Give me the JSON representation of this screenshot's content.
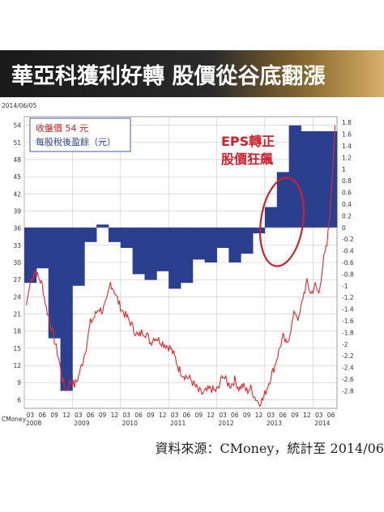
{
  "title": "華亞科獲利好轉 股價從谷底翻漲",
  "source": "資料來源：CMoney，統計至 2014/06",
  "chart_data": {
    "type": "bar+line",
    "date_label": "2014/06/05",
    "left_axis": {
      "ticks": [
        6,
        9,
        12,
        15,
        18,
        21,
        24,
        27,
        30,
        33,
        36,
        39,
        42,
        45,
        48,
        51,
        54
      ],
      "ylim": [
        4.5,
        55.5
      ]
    },
    "right_axis": {
      "ticks": [
        1.8,
        1.6,
        1.4,
        1.2,
        1,
        0.8,
        0.6,
        0.4,
        0.2,
        0,
        -0.2,
        -0.4,
        -0.6,
        -0.8,
        -1,
        -1.2,
        -1.4,
        -1.6,
        -1.8,
        -2,
        -2.2,
        -2.4,
        -2.6,
        -2.8
      ],
      "ylim": [
        -3.1,
        1.9
      ]
    },
    "x_tick_labels": [
      "03",
      "06",
      "09",
      "12",
      "03",
      "06",
      "09",
      "12",
      "03",
      "06",
      "09",
      "12",
      "03",
      "06",
      "09",
      "12",
      "03",
      "06",
      "09",
      "12",
      "03",
      "06",
      "09",
      "12",
      "03",
      "06"
    ],
    "year_labels": [
      "2008",
      "2009",
      "2010",
      "2011",
      "2012",
      "2013",
      "2014"
    ],
    "cmoney_label": "CMoney",
    "legend": {
      "price": "收盤價 54 元",
      "eps": "每股稅後盈餘（元）"
    },
    "annotation": {
      "line1": "EPS轉正",
      "line2": "股價狂飆"
    },
    "series": [
      {
        "name": "每股稅後盈餘（元）",
        "unit": "元",
        "quarters": [
          "2008Q1",
          "2008Q2",
          "2008Q3",
          "2008Q4",
          "2009Q1",
          "2009Q2",
          "2009Q3",
          "2009Q4",
          "2010Q1",
          "2010Q2",
          "2010Q3",
          "2010Q4",
          "2011Q1",
          "2011Q2",
          "2011Q3",
          "2011Q4",
          "2012Q1",
          "2012Q2",
          "2012Q3",
          "2012Q4",
          "2013Q1",
          "2013Q2",
          "2013Q3",
          "2013Q4",
          "2014Q1",
          "2014Q2"
        ],
        "values": [
          -0.95,
          -0.7,
          -1.9,
          -2.8,
          -1.0,
          -0.25,
          0.05,
          -0.25,
          -0.35,
          -0.8,
          -0.9,
          -0.75,
          -1.05,
          -0.95,
          -0.55,
          -0.6,
          -0.35,
          -0.6,
          -0.45,
          -0.1,
          0.35,
          0.95,
          1.75,
          1.65,
          1.65,
          1.65
        ],
        "color": "#2b3f8f"
      },
      {
        "name": "收盤價 54 元",
        "unit": "元",
        "points": [
          [
            "2008-01",
            22.5
          ],
          [
            "2008-02",
            26.5
          ],
          [
            "2008-03",
            28.5
          ],
          [
            "2008-04",
            27.5
          ],
          [
            "2008-05",
            26.0
          ],
          [
            "2008-06",
            22.0
          ],
          [
            "2008-07",
            19.5
          ],
          [
            "2008-08",
            16.5
          ],
          [
            "2008-09",
            13.5
          ],
          [
            "2008-10",
            9.5
          ],
          [
            "2008-11",
            7.5
          ],
          [
            "2008-12",
            9.5
          ],
          [
            "2009-01",
            8.5
          ],
          [
            "2009-02",
            10.0
          ],
          [
            "2009-03",
            12.5
          ],
          [
            "2009-04",
            15.5
          ],
          [
            "2009-05",
            19.5
          ],
          [
            "2009-06",
            20.5
          ],
          [
            "2009-07",
            22.0
          ],
          [
            "2009-08",
            21.5
          ],
          [
            "2009-09",
            23.0
          ],
          [
            "2009-10",
            26.5
          ],
          [
            "2009-11",
            25.0
          ],
          [
            "2009-12",
            23.0
          ],
          [
            "2010-01",
            21.5
          ],
          [
            "2010-02",
            20.5
          ],
          [
            "2010-03",
            19.5
          ],
          [
            "2010-04",
            18.0
          ],
          [
            "2010-05",
            17.0
          ],
          [
            "2010-06",
            18.0
          ],
          [
            "2010-07",
            17.5
          ],
          [
            "2010-08",
            16.0
          ],
          [
            "2010-09",
            17.0
          ],
          [
            "2010-10",
            16.5
          ],
          [
            "2010-11",
            16.0
          ],
          [
            "2010-12",
            15.5
          ],
          [
            "2011-01",
            15.0
          ],
          [
            "2011-02",
            13.5
          ],
          [
            "2011-03",
            11.5
          ],
          [
            "2011-04",
            10.5
          ],
          [
            "2011-05",
            10.0
          ],
          [
            "2011-06",
            9.5
          ],
          [
            "2011-07",
            8.5
          ],
          [
            "2011-08",
            7.5
          ],
          [
            "2011-09",
            7.0
          ],
          [
            "2011-10",
            7.5
          ],
          [
            "2011-11",
            8.0
          ],
          [
            "2011-12",
            7.5
          ],
          [
            "2012-01",
            8.0
          ],
          [
            "2012-02",
            10.5
          ],
          [
            "2012-03",
            9.0
          ],
          [
            "2012-04",
            8.5
          ],
          [
            "2012-05",
            9.5
          ],
          [
            "2012-06",
            8.0
          ],
          [
            "2012-07",
            8.5
          ],
          [
            "2012-08",
            7.5
          ],
          [
            "2012-09",
            8.0
          ],
          [
            "2012-10",
            6.5
          ],
          [
            "2012-11",
            5.5
          ],
          [
            "2012-12",
            6.0
          ],
          [
            "2013-01",
            8.0
          ],
          [
            "2013-02",
            10.0
          ],
          [
            "2013-03",
            12.0
          ],
          [
            "2013-04",
            14.5
          ],
          [
            "2013-05",
            17.0
          ],
          [
            "2013-06",
            15.5
          ],
          [
            "2013-07",
            18.5
          ],
          [
            "2013-08",
            21.5
          ],
          [
            "2013-09",
            20.0
          ],
          [
            "2013-10",
            24.0
          ],
          [
            "2013-11",
            26.5
          ],
          [
            "2013-12",
            24.5
          ],
          [
            "2014-01",
            26.0
          ],
          [
            "2014-02",
            24.5
          ],
          [
            "2014-03",
            30.0
          ],
          [
            "2014-04",
            33.0
          ],
          [
            "2014-05",
            41.0
          ],
          [
            "2014-06",
            54.0
          ]
        ],
        "color": "#e8262b"
      }
    ]
  }
}
